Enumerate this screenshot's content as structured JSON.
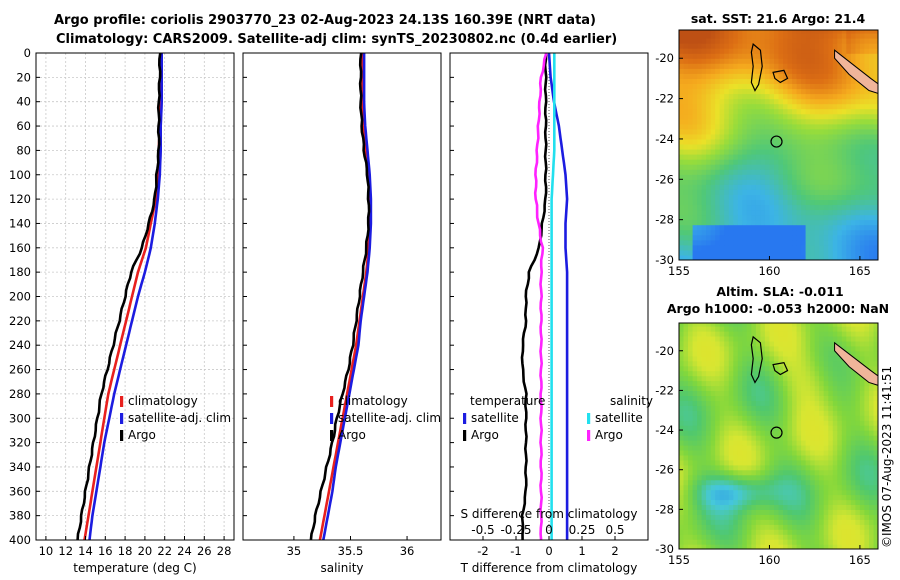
{
  "header": {
    "line1": "Argo profile: coriolis 2903770_23 02-Aug-2023 24.13S 160.39E (NRT data)",
    "line2": "Climatology: CARS2009. Satellite-adj clim: synTS_20230802.nc (0.4d earlier)"
  },
  "colors": {
    "climatology": "#e8201e",
    "satellite": "#1c1ce0",
    "argo": "#000000",
    "sal_diff": "#ff22ff",
    "sal_sat": "#22e0ee"
  },
  "chart_data": [
    {
      "type": "line",
      "panel": "temperature",
      "xlabel": "temperature (deg C)",
      "ylabel": "",
      "xlim": [
        9,
        29
      ],
      "ylim": [
        400,
        0
      ],
      "xticks": [
        10,
        12,
        14,
        16,
        18,
        20,
        22,
        24,
        26,
        28
      ],
      "yticks": [
        0,
        20,
        40,
        60,
        80,
        100,
        120,
        140,
        160,
        180,
        200,
        220,
        240,
        260,
        280,
        300,
        320,
        340,
        360,
        380,
        400
      ],
      "grid": true,
      "legend": [
        "climatology",
        "satellite-adj. clim",
        "Argo"
      ],
      "depth": [
        0,
        20,
        40,
        60,
        80,
        100,
        120,
        140,
        160,
        180,
        200,
        220,
        240,
        260,
        280,
        300,
        320,
        340,
        360,
        380,
        400
      ],
      "series": [
        {
          "name": "climatology",
          "values": [
            21.6,
            21.6,
            21.5,
            21.5,
            21.4,
            21.3,
            21.1,
            20.6,
            20.1,
            19.3,
            18.7,
            18.1,
            17.5,
            16.9,
            16.3,
            15.9,
            15.5,
            15.1,
            14.7,
            14.3,
            13.9
          ]
        },
        {
          "name": "satellite-adj. clim",
          "values": [
            21.7,
            21.7,
            21.7,
            21.6,
            21.6,
            21.5,
            21.3,
            21.0,
            20.6,
            20.0,
            19.3,
            18.7,
            18.1,
            17.5,
            16.9,
            16.4,
            15.9,
            15.5,
            15.1,
            14.7,
            14.4
          ]
        },
        {
          "name": "Argo",
          "values": [
            21.5,
            21.5,
            21.4,
            21.4,
            21.4,
            21.2,
            21.0,
            20.4,
            19.7,
            18.6,
            18.0,
            17.4,
            16.8,
            16.2,
            15.6,
            15.2,
            14.8,
            14.4,
            14.0,
            13.6,
            13.2
          ]
        }
      ]
    },
    {
      "type": "line",
      "panel": "salinity",
      "xlabel": "salinity",
      "xlim": [
        34.55,
        36.3
      ],
      "ylim": [
        400,
        0
      ],
      "xticks": [
        35,
        35.5,
        36
      ],
      "legend": [
        "climatology",
        "satellite-adj. clim",
        "Argo"
      ],
      "depth": [
        0,
        20,
        40,
        60,
        80,
        100,
        120,
        140,
        160,
        180,
        200,
        220,
        240,
        260,
        280,
        300,
        320,
        340,
        360,
        380,
        400
      ],
      "series": [
        {
          "name": "climatology",
          "values": [
            35.6,
            35.6,
            35.6,
            35.61,
            35.63,
            35.66,
            35.67,
            35.67,
            35.66,
            35.64,
            35.61,
            35.58,
            35.55,
            35.51,
            35.47,
            35.43,
            35.39,
            35.35,
            35.31,
            35.27,
            35.23
          ]
        },
        {
          "name": "satellite-adj. clim",
          "values": [
            35.62,
            35.62,
            35.62,
            35.63,
            35.65,
            35.67,
            35.68,
            35.68,
            35.67,
            35.65,
            35.62,
            35.59,
            35.57,
            35.53,
            35.49,
            35.45,
            35.41,
            35.37,
            35.34,
            35.3,
            35.26
          ]
        },
        {
          "name": "Argo",
          "values": [
            35.59,
            35.59,
            35.59,
            35.6,
            35.62,
            35.65,
            35.66,
            35.66,
            35.64,
            35.61,
            35.58,
            35.55,
            35.52,
            35.48,
            35.43,
            35.38,
            35.34,
            35.29,
            35.24,
            35.19,
            35.15
          ]
        }
      ]
    },
    {
      "type": "line",
      "panel": "difference",
      "xlabel": "T difference from climatology",
      "xlabel_top": "S difference from climatology",
      "xlim": [
        -3,
        3
      ],
      "xticks": [
        -2,
        -1,
        0,
        1,
        2
      ],
      "xlim_top": [
        -0.75,
        0.75
      ],
      "xticks_top": [
        -0.5,
        -0.25,
        0,
        0.25,
        0.5
      ],
      "ylim": [
        400,
        0
      ],
      "legend_titles": [
        "temperature",
        "salinity"
      ],
      "legend": [
        "satellite",
        "Argo",
        "satellite",
        "Argo"
      ],
      "depth": [
        0,
        20,
        40,
        60,
        80,
        100,
        120,
        140,
        160,
        180,
        200,
        220,
        240,
        260,
        280,
        300,
        320,
        340,
        360,
        380,
        400
      ],
      "series": [
        {
          "name": "temperature satellite",
          "values": [
            0.0,
            0.05,
            0.15,
            0.3,
            0.4,
            0.5,
            0.55,
            0.5,
            0.5,
            0.55,
            0.55,
            0.55,
            0.55,
            0.55,
            0.55,
            0.55,
            0.55,
            0.55,
            0.55,
            0.55,
            0.55
          ]
        },
        {
          "name": "temperature Argo",
          "values": [
            -0.1,
            -0.1,
            -0.1,
            -0.1,
            -0.1,
            -0.1,
            -0.1,
            -0.2,
            -0.3,
            -0.6,
            -0.7,
            -0.7,
            -0.8,
            -0.8,
            -0.7,
            -0.7,
            -0.7,
            -0.7,
            -0.7,
            -0.8,
            -0.8
          ]
        },
        {
          "name": "salinity satellite",
          "values": [
            0.04,
            0.04,
            0.04,
            0.04,
            0.04,
            0.03,
            0.02,
            0.02,
            0.02,
            0.02,
            0.02,
            0.02,
            0.02,
            0.02,
            0.02,
            0.02,
            0.02,
            0.02,
            0.02,
            0.02,
            0.02
          ]
        },
        {
          "name": "salinity Argo",
          "values": [
            -0.02,
            -0.06,
            -0.07,
            -0.08,
            -0.09,
            -0.1,
            -0.1,
            -0.08,
            -0.05,
            -0.06,
            -0.06,
            -0.06,
            -0.06,
            -0.06,
            -0.06,
            -0.06,
            -0.06,
            -0.06,
            -0.06,
            -0.06,
            -0.06
          ]
        }
      ]
    },
    {
      "type": "heatmap",
      "panel": "map-sst",
      "title": "sat. SST: 21.6 Argo: 21.4",
      "xlim": [
        155,
        166
      ],
      "ylim": [
        -30,
        -18.6
      ],
      "xticks": [
        155,
        160,
        165
      ],
      "yticks": [
        -20,
        -22,
        -24,
        -26,
        -28,
        -30
      ],
      "marker": {
        "lon": 160.39,
        "lat": -24.13
      }
    },
    {
      "type": "heatmap",
      "panel": "map-sla",
      "title": "Altim. SLA: -0.011",
      "subtitle": "Argo h1000: -0.053 h2000: NaN",
      "xlim": [
        155,
        166
      ],
      "ylim": [
        -30,
        -18.6
      ],
      "xticks": [
        155,
        160,
        165
      ],
      "yticks": [
        -20,
        -22,
        -24,
        -26,
        -28,
        -30
      ],
      "marker": {
        "lon": 160.39,
        "lat": -24.13
      }
    }
  ],
  "watermark": "©IMOS 07-Aug-2023 11:41:51"
}
